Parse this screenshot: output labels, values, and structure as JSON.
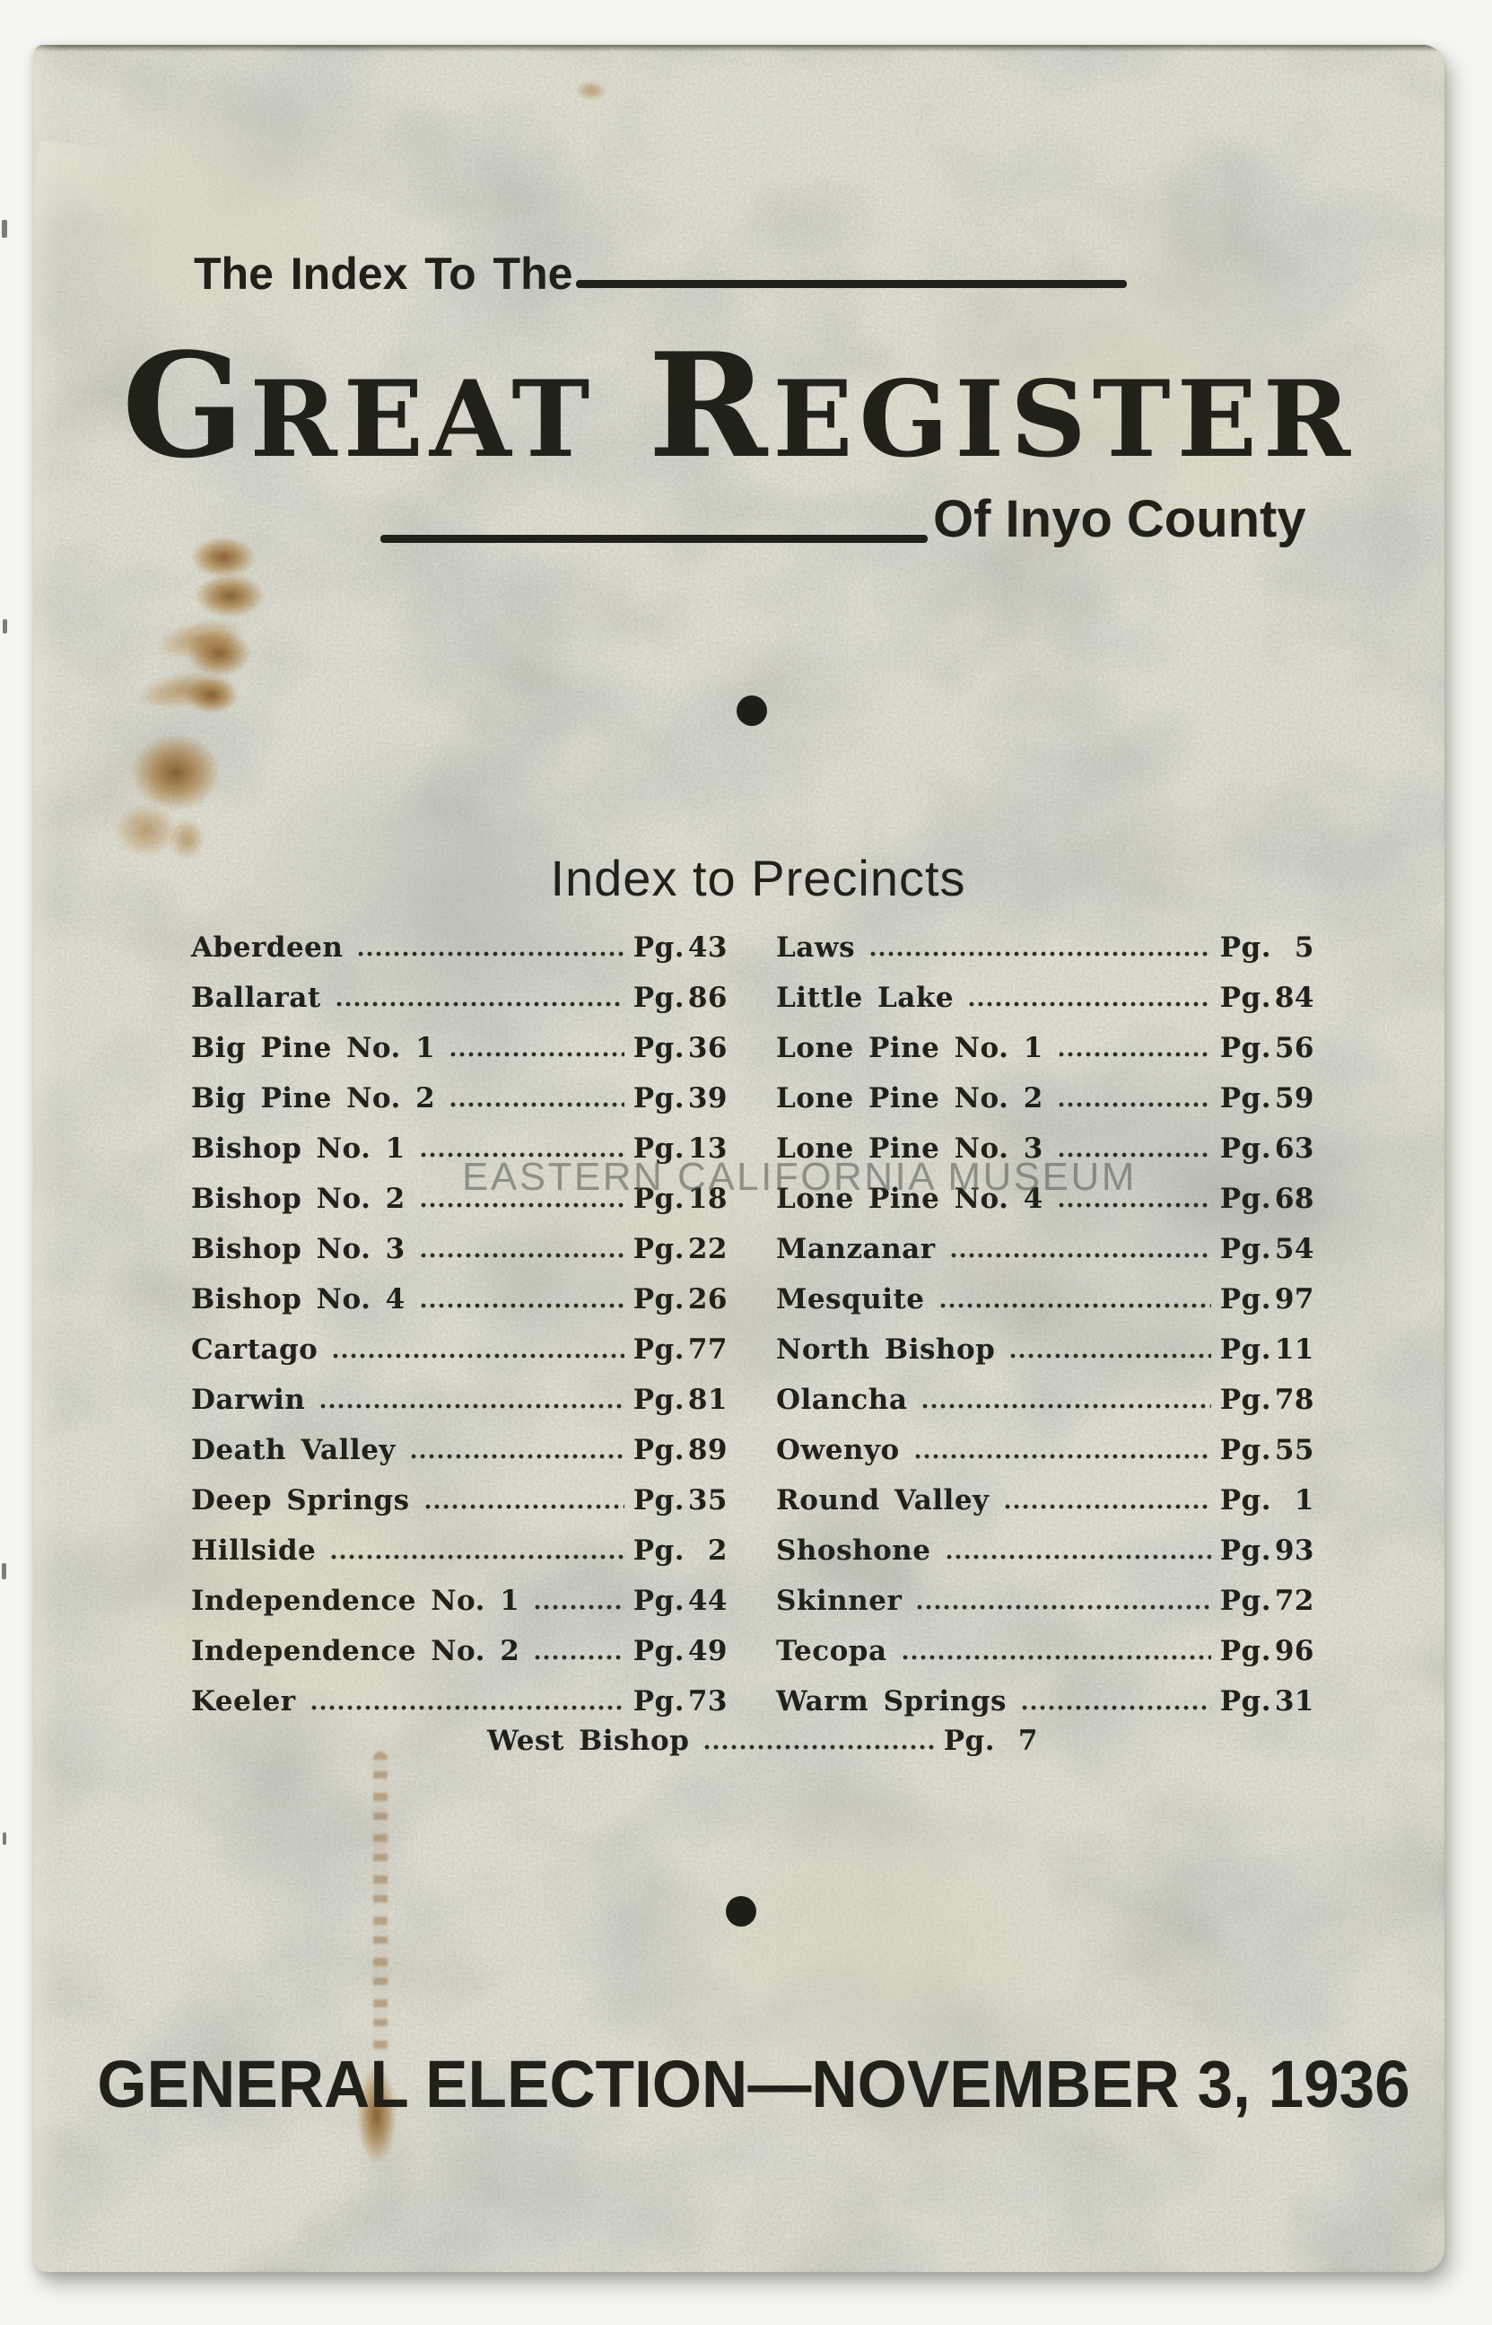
{
  "cover": {
    "kicker": "The Index To The",
    "title": {
      "word1_initial": "G",
      "word1_rest": "REAT",
      "word2_initial": "R",
      "word2_rest": "EGISTER"
    },
    "subtitle": "Of Inyo County",
    "index_heading": "Index to Precincts",
    "pg_label": "Pg.",
    "footer": "GENERAL ELECTION—NOVEMBER 3, 1936",
    "watermark": "EASTERN CALIFORNIA MUSEUM"
  },
  "index": {
    "left": [
      {
        "name": "Aberdeen",
        "page": "43"
      },
      {
        "name": "Ballarat",
        "page": "86"
      },
      {
        "name": "Big Pine No. 1",
        "page": "36"
      },
      {
        "name": "Big Pine No. 2",
        "page": "39"
      },
      {
        "name": "Bishop No. 1",
        "page": "13"
      },
      {
        "name": "Bishop No. 2",
        "page": "18"
      },
      {
        "name": "Bishop No. 3",
        "page": "22"
      },
      {
        "name": "Bishop No. 4",
        "page": "26"
      },
      {
        "name": "Cartago",
        "page": "77"
      },
      {
        "name": "Darwin",
        "page": "81"
      },
      {
        "name": "Death Valley",
        "page": "89"
      },
      {
        "name": "Deep Springs",
        "page": "35"
      },
      {
        "name": "Hillside",
        "page": "2"
      },
      {
        "name": "Independence No. 1",
        "page": "44"
      },
      {
        "name": "Independence No. 2",
        "page": "49"
      },
      {
        "name": "Keeler",
        "page": "73"
      }
    ],
    "right": [
      {
        "name": "Laws",
        "page": "5"
      },
      {
        "name": "Little Lake",
        "page": "84"
      },
      {
        "name": "Lone Pine No. 1",
        "page": "56"
      },
      {
        "name": "Lone Pine No. 2",
        "page": "59"
      },
      {
        "name": "Lone Pine No. 3",
        "page": "63"
      },
      {
        "name": "Lone Pine No. 4",
        "page": "68"
      },
      {
        "name": "Manzanar",
        "page": "54"
      },
      {
        "name": "Mesquite",
        "page": "97"
      },
      {
        "name": "North Bishop",
        "page": "11"
      },
      {
        "name": "Olancha",
        "page": "78"
      },
      {
        "name": "Owenyo",
        "page": "55"
      },
      {
        "name": "Round Valley",
        "page": "1"
      },
      {
        "name": "Shoshone",
        "page": "93"
      },
      {
        "name": "Skinner",
        "page": "72"
      },
      {
        "name": "Tecopa",
        "page": "96"
      },
      {
        "name": "Warm Springs",
        "page": "31"
      }
    ],
    "center": [
      {
        "name": "West Bishop",
        "page": "7"
      }
    ]
  },
  "colors": {
    "ink": "#21211a",
    "ornament": "#1d1f17",
    "paper": "#b6b6a9",
    "scan_bed": "#f6f5f1",
    "stain": "#8a5a22",
    "watermark_rgba": "rgba(82,85,80,0.55)"
  }
}
